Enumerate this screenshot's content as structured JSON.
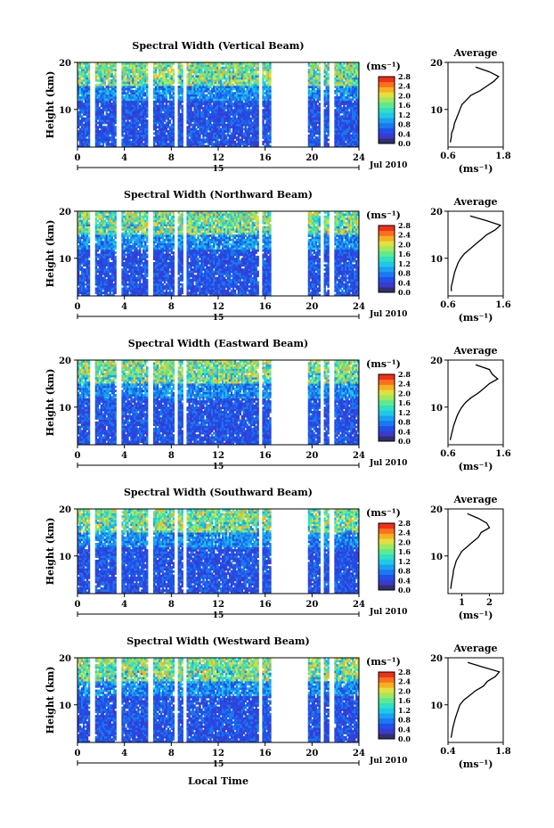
{
  "figure": {
    "xaxis_label": "Local Time",
    "date_caption": "Jul 2010",
    "day_label": "15",
    "colorbar_unit": "(ms⁻¹)",
    "colorbar_ticks": [
      "0.0",
      "0.4",
      "0.8",
      "1.2",
      "1.6",
      "2.0",
      "2.4",
      "2.8"
    ],
    "palette": [
      "#30306a",
      "#3a3ad0",
      "#2050e8",
      "#1a78f0",
      "#1aa0f0",
      "#20c8e8",
      "#30e0c0",
      "#60e890",
      "#a0e860",
      "#e0e040",
      "#f8b020",
      "#f87020",
      "#f03018"
    ]
  },
  "chart_data": [
    {
      "type": "heatmap",
      "title": "Spectral Width (Vertical Beam)",
      "ylabel": "Height (km)",
      "xlim": [
        0,
        24
      ],
      "ylim": [
        2,
        20
      ],
      "x_ticks": [
        0,
        4,
        8,
        12,
        16,
        20,
        24
      ],
      "y_ticks": [
        10,
        20
      ],
      "value_range": [
        0,
        3.0
      ],
      "data_gaps_hours": [
        [
          1.0,
          1.5
        ],
        [
          3.3,
          3.7
        ],
        [
          6.0,
          6.4
        ],
        [
          8.2,
          8.6
        ],
        [
          9.0,
          9.3
        ],
        [
          15.4,
          15.8
        ],
        [
          16.5,
          19.6
        ],
        [
          20.7,
          21.0
        ],
        [
          21.5,
          21.9
        ]
      ],
      "average_profile": {
        "title": "Average",
        "xlabel": "(ms⁻¹)",
        "xlim": [
          0.6,
          1.8
        ],
        "x_ticks": [
          0.6,
          1.8
        ],
        "ylim": [
          2,
          20
        ],
        "y_ticks": [
          10,
          20
        ],
        "height_km": [
          3,
          4,
          5,
          6,
          7,
          8,
          9,
          10,
          11,
          12,
          13,
          14,
          15,
          16,
          17,
          18,
          19
        ],
        "width_ms": [
          0.65,
          0.67,
          0.68,
          0.72,
          0.74,
          0.78,
          0.82,
          0.86,
          0.9,
          1.0,
          1.1,
          1.3,
          1.45,
          1.6,
          1.7,
          1.5,
          1.2
        ]
      }
    },
    {
      "type": "heatmap",
      "title": "Spectral Width (Northward Beam)",
      "ylabel": "Height (km)",
      "xlim": [
        0,
        24
      ],
      "ylim": [
        2,
        20
      ],
      "x_ticks": [
        0,
        4,
        8,
        12,
        16,
        20,
        24
      ],
      "y_ticks": [
        10,
        20
      ],
      "value_range": [
        0,
        3.0
      ],
      "data_gaps_hours": [
        [
          1.0,
          1.5
        ],
        [
          3.3,
          3.7
        ],
        [
          6.0,
          6.4
        ],
        [
          8.2,
          8.6
        ],
        [
          9.0,
          9.3
        ],
        [
          15.4,
          15.8
        ],
        [
          16.5,
          19.6
        ],
        [
          20.7,
          21.0
        ],
        [
          21.5,
          21.9
        ]
      ],
      "average_profile": {
        "title": "Average",
        "xlabel": "(ms⁻¹)",
        "xlim": [
          0.6,
          1.6
        ],
        "x_ticks": [
          0.6,
          1.6
        ],
        "ylim": [
          2,
          20
        ],
        "y_ticks": [
          10,
          20
        ],
        "height_km": [
          3,
          4,
          5,
          6,
          7,
          8,
          9,
          10,
          11,
          12,
          13,
          14,
          15,
          16,
          17,
          18,
          19
        ],
        "width_ms": [
          0.66,
          0.66,
          0.68,
          0.7,
          0.72,
          0.75,
          0.78,
          0.83,
          0.9,
          1.0,
          1.1,
          1.2,
          1.3,
          1.45,
          1.55,
          1.3,
          1.0
        ]
      }
    },
    {
      "type": "heatmap",
      "title": "Spectral Width (Eastward Beam)",
      "ylabel": "Height (km)",
      "xlim": [
        0,
        24
      ],
      "ylim": [
        2,
        20
      ],
      "x_ticks": [
        0,
        4,
        8,
        12,
        16,
        20,
        24
      ],
      "y_ticks": [
        10,
        20
      ],
      "value_range": [
        0,
        3.0
      ],
      "data_gaps_hours": [
        [
          1.0,
          1.5
        ],
        [
          3.3,
          3.7
        ],
        [
          6.0,
          6.4
        ],
        [
          8.2,
          8.6
        ],
        [
          9.0,
          9.3
        ],
        [
          15.4,
          15.8
        ],
        [
          16.5,
          19.6
        ],
        [
          20.7,
          21.0
        ],
        [
          21.5,
          21.9
        ]
      ],
      "average_profile": {
        "title": "Average",
        "xlabel": "(ms⁻¹)",
        "xlim": [
          0.6,
          1.6
        ],
        "x_ticks": [
          0.6,
          1.6
        ],
        "ylim": [
          2,
          20
        ],
        "y_ticks": [
          10,
          20
        ],
        "height_km": [
          3,
          4,
          5,
          6,
          7,
          8,
          9,
          10,
          11,
          12,
          13,
          14,
          15,
          16,
          17,
          18,
          19
        ],
        "width_ms": [
          0.64,
          0.66,
          0.68,
          0.7,
          0.73,
          0.76,
          0.8,
          0.85,
          0.92,
          1.02,
          1.15,
          1.25,
          1.35,
          1.5,
          1.4,
          1.35,
          1.1
        ]
      }
    },
    {
      "type": "heatmap",
      "title": "Spectral Width (Southward Beam)",
      "ylabel": "Height (km)",
      "xlim": [
        0,
        24
      ],
      "ylim": [
        2,
        20
      ],
      "x_ticks": [
        0,
        4,
        8,
        12,
        16,
        20,
        24
      ],
      "y_ticks": [
        10,
        20
      ],
      "value_range": [
        0,
        3.0
      ],
      "data_gaps_hours": [
        [
          1.0,
          1.5
        ],
        [
          3.3,
          3.7
        ],
        [
          6.0,
          6.4
        ],
        [
          8.2,
          8.6
        ],
        [
          9.0,
          9.3
        ],
        [
          15.4,
          15.8
        ],
        [
          16.5,
          19.6
        ],
        [
          20.7,
          21.0
        ],
        [
          21.5,
          21.9
        ]
      ],
      "average_profile": {
        "title": "Average",
        "xlabel": "(ms⁻¹)",
        "xlim": [
          0.5,
          2.5
        ],
        "x_ticks": [
          1,
          2
        ],
        "ylim": [
          2,
          20
        ],
        "y_ticks": [
          10,
          20
        ],
        "height_km": [
          3,
          4,
          5,
          6,
          7,
          8,
          9,
          10,
          11,
          12,
          13,
          14,
          15,
          16,
          17,
          18,
          19
        ],
        "width_ms": [
          0.6,
          0.62,
          0.65,
          0.68,
          0.7,
          0.75,
          0.8,
          0.9,
          1.0,
          1.2,
          1.4,
          1.6,
          1.7,
          2.0,
          1.9,
          1.6,
          1.2
        ]
      }
    },
    {
      "type": "heatmap",
      "title": "Spectral Width (Westward Beam)",
      "ylabel": "Height (km)",
      "xlim": [
        0,
        24
      ],
      "ylim": [
        2,
        20
      ],
      "x_ticks": [
        0,
        4,
        8,
        12,
        16,
        20,
        24
      ],
      "y_ticks": [
        10,
        20
      ],
      "value_range": [
        0,
        3.0
      ],
      "data_gaps_hours": [
        [
          1.0,
          1.5
        ],
        [
          3.3,
          3.7
        ],
        [
          6.0,
          6.4
        ],
        [
          8.2,
          8.6
        ],
        [
          9.0,
          9.3
        ],
        [
          15.4,
          15.8
        ],
        [
          16.5,
          19.6
        ],
        [
          20.7,
          21.0
        ],
        [
          21.5,
          21.9
        ]
      ],
      "average_profile": {
        "title": "Average",
        "xlabel": "(ms⁻¹)",
        "xlim": [
          0.4,
          1.8
        ],
        "x_ticks": [
          0.4,
          1.8
        ],
        "ylim": [
          2,
          20
        ],
        "y_ticks": [
          10,
          20
        ],
        "height_km": [
          3,
          4,
          5,
          6,
          7,
          8,
          9,
          10,
          11,
          12,
          13,
          14,
          15,
          16,
          17,
          18,
          19
        ],
        "width_ms": [
          0.48,
          0.5,
          0.52,
          0.55,
          0.58,
          0.62,
          0.66,
          0.7,
          0.8,
          0.95,
          1.1,
          1.3,
          1.4,
          1.6,
          1.7,
          1.3,
          0.9
        ]
      }
    }
  ]
}
